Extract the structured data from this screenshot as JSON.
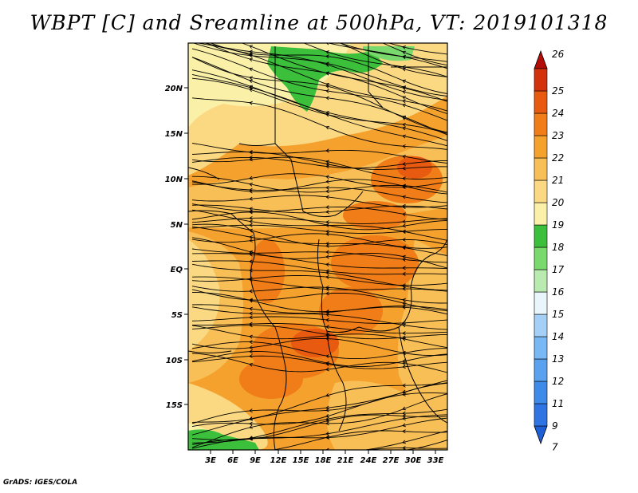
{
  "title": "WBPT [C] and Sreamline at 500hPa, VT: 2019101318",
  "credit": "GrADS: IGES/COLA",
  "lat_labels": [
    "20N",
    "15N",
    "10N",
    "5N",
    "EQ",
    "5S",
    "10S",
    "15S"
  ],
  "lon_labels": [
    "3E",
    "6E",
    "9E",
    "12E",
    "15E",
    "18E",
    "21E",
    "24E",
    "27E",
    "30E",
    "33E"
  ],
  "colorbar": {
    "labels": [
      "7",
      "9",
      "11",
      "12",
      "13",
      "14",
      "15",
      "16",
      "17",
      "18",
      "19",
      "20",
      "21",
      "22",
      "23",
      "24",
      "25",
      "26"
    ],
    "colors": [
      "#1f5fd6",
      "#2e74e2",
      "#3d8ae9",
      "#5aa2ef",
      "#78b8f4",
      "#a4d0f8",
      "#e8f6fb",
      "#b9eab0",
      "#7ad96c",
      "#3cbf3a",
      "#fbf0a8",
      "#fbd983",
      "#f9bf57",
      "#f5a12e",
      "#f07d17",
      "#e85a10",
      "#d3300c",
      "#b40c08"
    ]
  },
  "colors": {
    "land_base": "#f7a02a",
    "warm_core": "#ef6d18",
    "cool_edge": "#f9d683",
    "green_low": "#3cbf3a"
  }
}
